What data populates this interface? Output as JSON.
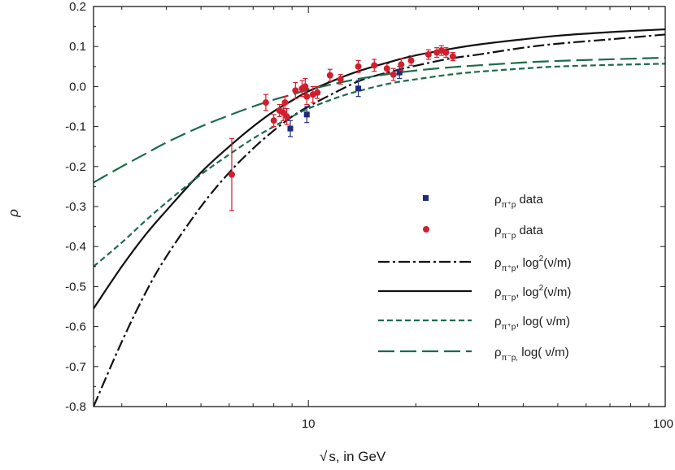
{
  "chart_data": {
    "type": "line",
    "x_scale": "log",
    "xlim": [
      2.5,
      100
    ],
    "ylim": [
      -0.8,
      0.2
    ],
    "xlabel": "s, in GeV",
    "xlabel_radical": "√",
    "ylabel": "ρ",
    "x_ticks": [
      10,
      100
    ],
    "x_tick_labels": [
      "10",
      "100"
    ],
    "y_ticks": [
      -0.8,
      -0.7,
      -0.6,
      -0.5,
      -0.4,
      -0.3,
      -0.2,
      -0.1,
      0.0,
      0.1,
      0.2
    ],
    "y_tick_labels": [
      "-0.8",
      "-0.7",
      "-0.6",
      "-0.5",
      "-0.4",
      "-0.3",
      "-0.2",
      "-0.1",
      "0.0",
      "0.1",
      "0.2"
    ],
    "legend": [
      {
        "key": "pip_data",
        "main": "ρ",
        "sub": "π⁺p",
        "rest": " data"
      },
      {
        "key": "pim_data",
        "main": "ρ",
        "sub": "π⁻p",
        "rest": " data"
      },
      {
        "key": "pip_log2",
        "main": "ρ",
        "sub": "π⁺p",
        "rest": ", log",
        "sup": "2",
        "tail": "(ν/m)"
      },
      {
        "key": "pim_log2",
        "main": "ρ",
        "sub": "π⁻p",
        "rest": ", log",
        "sup": "2",
        "tail": "(ν/m)"
      },
      {
        "key": "pip_log",
        "main": "ρ",
        "sub": "π⁺p",
        "rest": ", log( ν/m)"
      },
      {
        "key": "pim_log",
        "main": "ρ",
        "sub": "π⁻p,",
        "rest": "  log( ν/m)"
      }
    ],
    "series": [
      {
        "name": "ρπ⁺p data",
        "key": "pip_data",
        "kind": "points",
        "marker": "square",
        "color": "#1f2a7a",
        "x": [
          8.9,
          9.9,
          13.8,
          18.0
        ],
        "y": [
          -0.105,
          -0.07,
          -0.005,
          0.035
        ],
        "err": [
          0.02,
          0.02,
          0.02,
          0.015
        ]
      },
      {
        "name": "ρπ⁻p data",
        "key": "pim_data",
        "kind": "points",
        "marker": "circle",
        "color": "#d11f2e",
        "x": [
          6.1,
          7.6,
          8.0,
          8.3,
          8.5,
          8.6,
          8.7,
          9.2,
          9.6,
          9.8,
          9.9,
          10.3,
          10.6,
          11.5,
          12.3,
          13.8,
          15.3,
          16.6,
          17.3,
          18.2,
          19.4,
          21.7,
          22.9,
          23.6,
          24.3,
          25.4
        ],
        "y": [
          -0.22,
          -0.04,
          -0.085,
          -0.06,
          -0.065,
          -0.04,
          -0.075,
          -0.01,
          -0.005,
          0.0,
          -0.025,
          -0.02,
          -0.015,
          0.028,
          0.018,
          0.05,
          0.053,
          0.045,
          0.03,
          0.055,
          0.065,
          0.08,
          0.085,
          0.09,
          0.085,
          0.075
        ],
        "err": [
          0.09,
          0.02,
          0.015,
          0.015,
          0.02,
          0.015,
          0.02,
          0.02,
          0.02,
          0.02,
          0.02,
          0.02,
          0.015,
          0.015,
          0.012,
          0.015,
          0.015,
          0.012,
          0.015,
          0.015,
          0.012,
          0.012,
          0.012,
          0.012,
          0.012,
          0.01
        ]
      },
      {
        "name": "ρπ⁺p, log²(ν/m)",
        "key": "pip_log2",
        "kind": "line",
        "style": "dashdot",
        "color": "#111111",
        "x": [
          2.5,
          3.0,
          3.5,
          4.0,
          5.0,
          6.0,
          7.0,
          8.0,
          9.0,
          10.0,
          12.0,
          14.0,
          17.0,
          20.0,
          25.0,
          30.0,
          40.0,
          50.0,
          70.0,
          100.0
        ],
        "y": [
          -0.8,
          -0.638,
          -0.515,
          -0.425,
          -0.3,
          -0.215,
          -0.155,
          -0.11,
          -0.075,
          -0.05,
          -0.013,
          0.015,
          0.037,
          0.052,
          0.07,
          0.08,
          0.097,
          0.107,
          0.118,
          0.13
        ]
      },
      {
        "name": "ρπ⁻p, log²(ν/m)",
        "key": "pim_log2",
        "kind": "line",
        "style": "solid",
        "color": "#111111",
        "x": [
          2.5,
          3.0,
          3.5,
          4.0,
          5.0,
          6.0,
          7.0,
          8.0,
          9.0,
          10.0,
          12.0,
          14.0,
          17.0,
          20.0,
          25.0,
          30.0,
          40.0,
          50.0,
          70.0,
          100.0
        ],
        "y": [
          -0.555,
          -0.45,
          -0.37,
          -0.31,
          -0.215,
          -0.15,
          -0.1,
          -0.062,
          -0.035,
          -0.012,
          0.018,
          0.04,
          0.062,
          0.078,
          0.094,
          0.105,
          0.118,
          0.127,
          0.136,
          0.143
        ]
      },
      {
        "name": "ρπ⁺p, log(ν/m)",
        "key": "pip_log",
        "kind": "line",
        "style": "dashed",
        "color": "#1c6b4a",
        "x": [
          2.5,
          3.0,
          3.5,
          4.0,
          5.0,
          6.0,
          7.0,
          8.0,
          9.0,
          10.0,
          12.0,
          14.0,
          17.0,
          20.0,
          25.0,
          30.0,
          40.0,
          50.0,
          70.0,
          100.0
        ],
        "y": [
          -0.45,
          -0.39,
          -0.335,
          -0.29,
          -0.22,
          -0.17,
          -0.13,
          -0.1,
          -0.075,
          -0.055,
          -0.028,
          -0.01,
          0.008,
          0.018,
          0.03,
          0.037,
          0.045,
          0.05,
          0.054,
          0.057
        ]
      },
      {
        "name": "ρπ⁻p, log(ν/m)",
        "key": "pim_log",
        "kind": "line",
        "style": "longdash",
        "color": "#1c6b4a",
        "x": [
          2.5,
          3.0,
          3.5,
          4.0,
          5.0,
          6.0,
          7.0,
          8.0,
          9.0,
          10.0,
          12.0,
          14.0,
          17.0,
          20.0,
          25.0,
          30.0,
          40.0,
          50.0,
          70.0,
          100.0
        ],
        "y": [
          -0.24,
          -0.2,
          -0.168,
          -0.14,
          -0.1,
          -0.072,
          -0.05,
          -0.033,
          -0.02,
          -0.008,
          0.008,
          0.02,
          0.032,
          0.04,
          0.048,
          0.053,
          0.06,
          0.064,
          0.068,
          0.072
        ]
      }
    ]
  }
}
